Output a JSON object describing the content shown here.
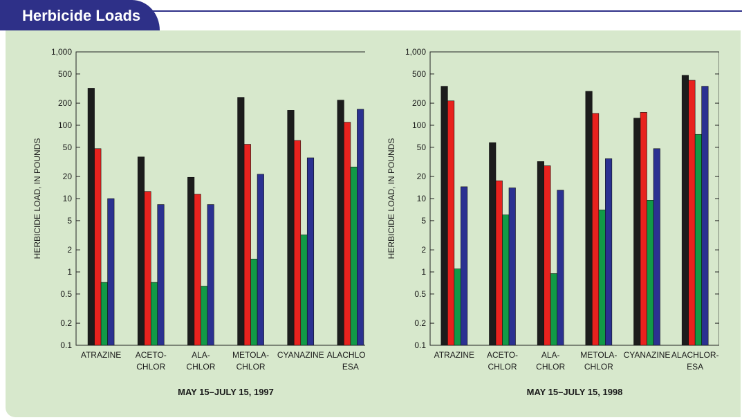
{
  "header": {
    "title": "Herbicide Loads",
    "colors": {
      "tab": "#2e3088",
      "panel": "#d7e8cc"
    }
  },
  "series_colors": [
    "#1c1c1c",
    "#e8221e",
    "#119a47",
    "#2b3191"
  ],
  "chart_data": [
    {
      "type": "bar",
      "title": "MAY 15–JULY 15, 1997",
      "ylabel": "HERBICIDE LOAD, IN POUNDS",
      "yscale": "log",
      "ylim": [
        0.1,
        1000
      ],
      "yticks": [
        0.1,
        0.2,
        0.5,
        1,
        2,
        5,
        10,
        20,
        50,
        100,
        200,
        500,
        1000
      ],
      "ytick_labels": [
        "0.1",
        "0.2",
        "0.5",
        "1",
        "2",
        "5",
        "10",
        "20",
        "50",
        "100",
        "200",
        "500",
        "1,000"
      ],
      "categories": [
        [
          "ATRAZINE"
        ],
        [
          "ACETO-",
          "CHLOR"
        ],
        [
          "ALA-",
          "CHLOR"
        ],
        [
          "METOLA-",
          "CHLOR"
        ],
        [
          "CYANAZINE"
        ],
        [
          "ALACHLOR-",
          "ESA"
        ]
      ],
      "series": [
        {
          "values": [
            320,
            37,
            19.5,
            240,
            160,
            220
          ]
        },
        {
          "values": [
            48,
            12.5,
            11.5,
            55,
            62,
            110
          ]
        },
        {
          "values": [
            0.72,
            0.72,
            0.64,
            1.5,
            3.2,
            27
          ]
        },
        {
          "values": [
            10,
            8.3,
            8.3,
            21.5,
            36,
            165
          ]
        }
      ]
    },
    {
      "type": "bar",
      "title": "MAY 15–JULY 15, 1998",
      "ylabel": "HERBICIDE LOAD, IN POUNDS",
      "yscale": "log",
      "ylim": [
        0.1,
        1000
      ],
      "yticks": [
        0.1,
        0.2,
        0.5,
        1,
        2,
        5,
        10,
        20,
        50,
        100,
        200,
        500,
        1000
      ],
      "ytick_labels": [
        "0.1",
        "0.2",
        "0.5",
        "1",
        "2",
        "5",
        "10",
        "20",
        "50",
        "100",
        "200",
        "500",
        "1,000"
      ],
      "categories": [
        [
          "ATRAZINE"
        ],
        [
          "ACETO-",
          "CHLOR"
        ],
        [
          "ALA-",
          "CHLOR"
        ],
        [
          "METOLA-",
          "CHLOR"
        ],
        [
          "CYANAZINE"
        ],
        [
          "ALACHLOR-",
          "ESA"
        ]
      ],
      "series": [
        {
          "values": [
            340,
            58,
            32,
            290,
            125,
            480
          ]
        },
        {
          "values": [
            215,
            17.5,
            28,
            145,
            150,
            410
          ]
        },
        {
          "values": [
            1.1,
            6,
            0.95,
            7,
            9.5,
            75
          ]
        },
        {
          "values": [
            14.5,
            14,
            13,
            35,
            48,
            340
          ]
        }
      ]
    }
  ]
}
